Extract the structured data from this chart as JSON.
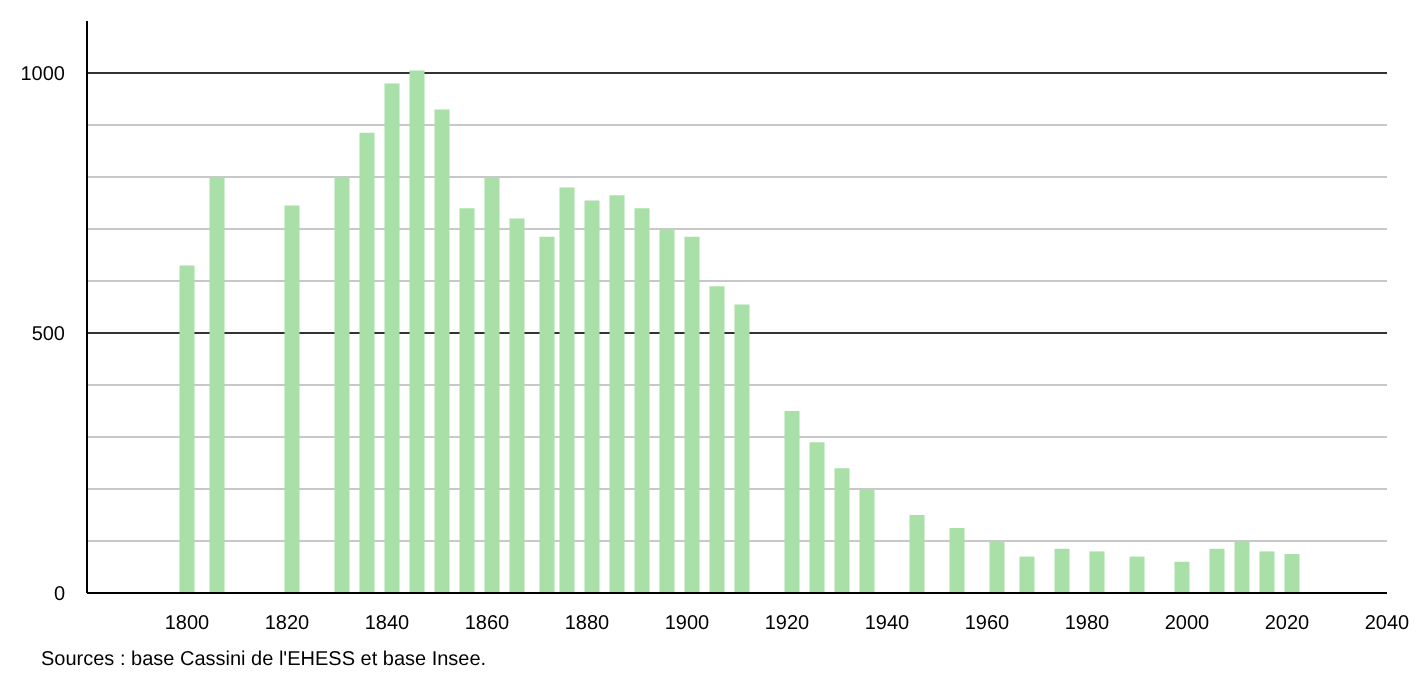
{
  "chart_data": {
    "type": "bar",
    "x": [
      1800,
      1806,
      1821,
      1831,
      1836,
      1841,
      1846,
      1851,
      1856,
      1861,
      1866,
      1872,
      1876,
      1881,
      1886,
      1891,
      1896,
      1901,
      1906,
      1911,
      1921,
      1926,
      1931,
      1936,
      1946,
      1954,
      1962,
      1968,
      1975,
      1982,
      1990,
      1999,
      2006,
      2011,
      2016,
      2021
    ],
    "values": [
      630,
      800,
      745,
      800,
      885,
      980,
      1005,
      930,
      740,
      800,
      720,
      685,
      780,
      755,
      765,
      740,
      700,
      685,
      590,
      555,
      350,
      290,
      240,
      200,
      150,
      125,
      100,
      70,
      85,
      80,
      70,
      60,
      85,
      100,
      80,
      75
    ],
    "color": "#a8e0a8",
    "xlim": [
      1780,
      2040
    ],
    "xticks": [
      1800,
      1820,
      1840,
      1860,
      1880,
      1900,
      1920,
      1940,
      1960,
      1980,
      2000,
      2020,
      2040
    ],
    "ylim": [
      0,
      1100
    ],
    "yticks": [
      0,
      {
        "value": 100,
        "label": null
      },
      {
        "value": 200,
        "label": null
      },
      {
        "value": 300,
        "label": null
      },
      {
        "value": 400,
        "label": null
      },
      500,
      {
        "value": 600,
        "label": null
      },
      {
        "value": 700,
        "label": null
      },
      {
        "value": 800,
        "label": null
      },
      {
        "value": 900,
        "label": null
      },
      1000
    ],
    "grid": "y",
    "annotations": [
      "Sources : base Cassini de l'EHESS et base Insee."
    ]
  }
}
